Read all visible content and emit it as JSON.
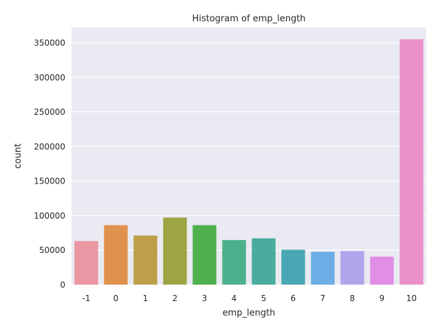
{
  "chart_data": {
    "type": "bar",
    "title": "Histogram of emp_length",
    "xlabel": "emp_length",
    "ylabel": "count",
    "categories": [
      "-1",
      "0",
      "1",
      "2",
      "3",
      "4",
      "5",
      "6",
      "7",
      "8",
      "9",
      "10"
    ],
    "values": [
      63000,
      86000,
      71000,
      97000,
      86000,
      64500,
      67000,
      50500,
      47500,
      48500,
      40500,
      355000
    ],
    "colors": [
      "#ea96a3",
      "#e1914e",
      "#bd9f4a",
      "#9da443",
      "#4fb04d",
      "#4bb08b",
      "#49ac9d",
      "#4aa8b5",
      "#6eaee6",
      "#b2a4eb",
      "#e08ee6",
      "#ea90c8"
    ],
    "ylim": [
      0,
      372000
    ],
    "yticks": [
      0,
      50000,
      100000,
      150000,
      200000,
      250000,
      300000,
      350000
    ],
    "grid": true,
    "background": "#eaeaf2"
  }
}
